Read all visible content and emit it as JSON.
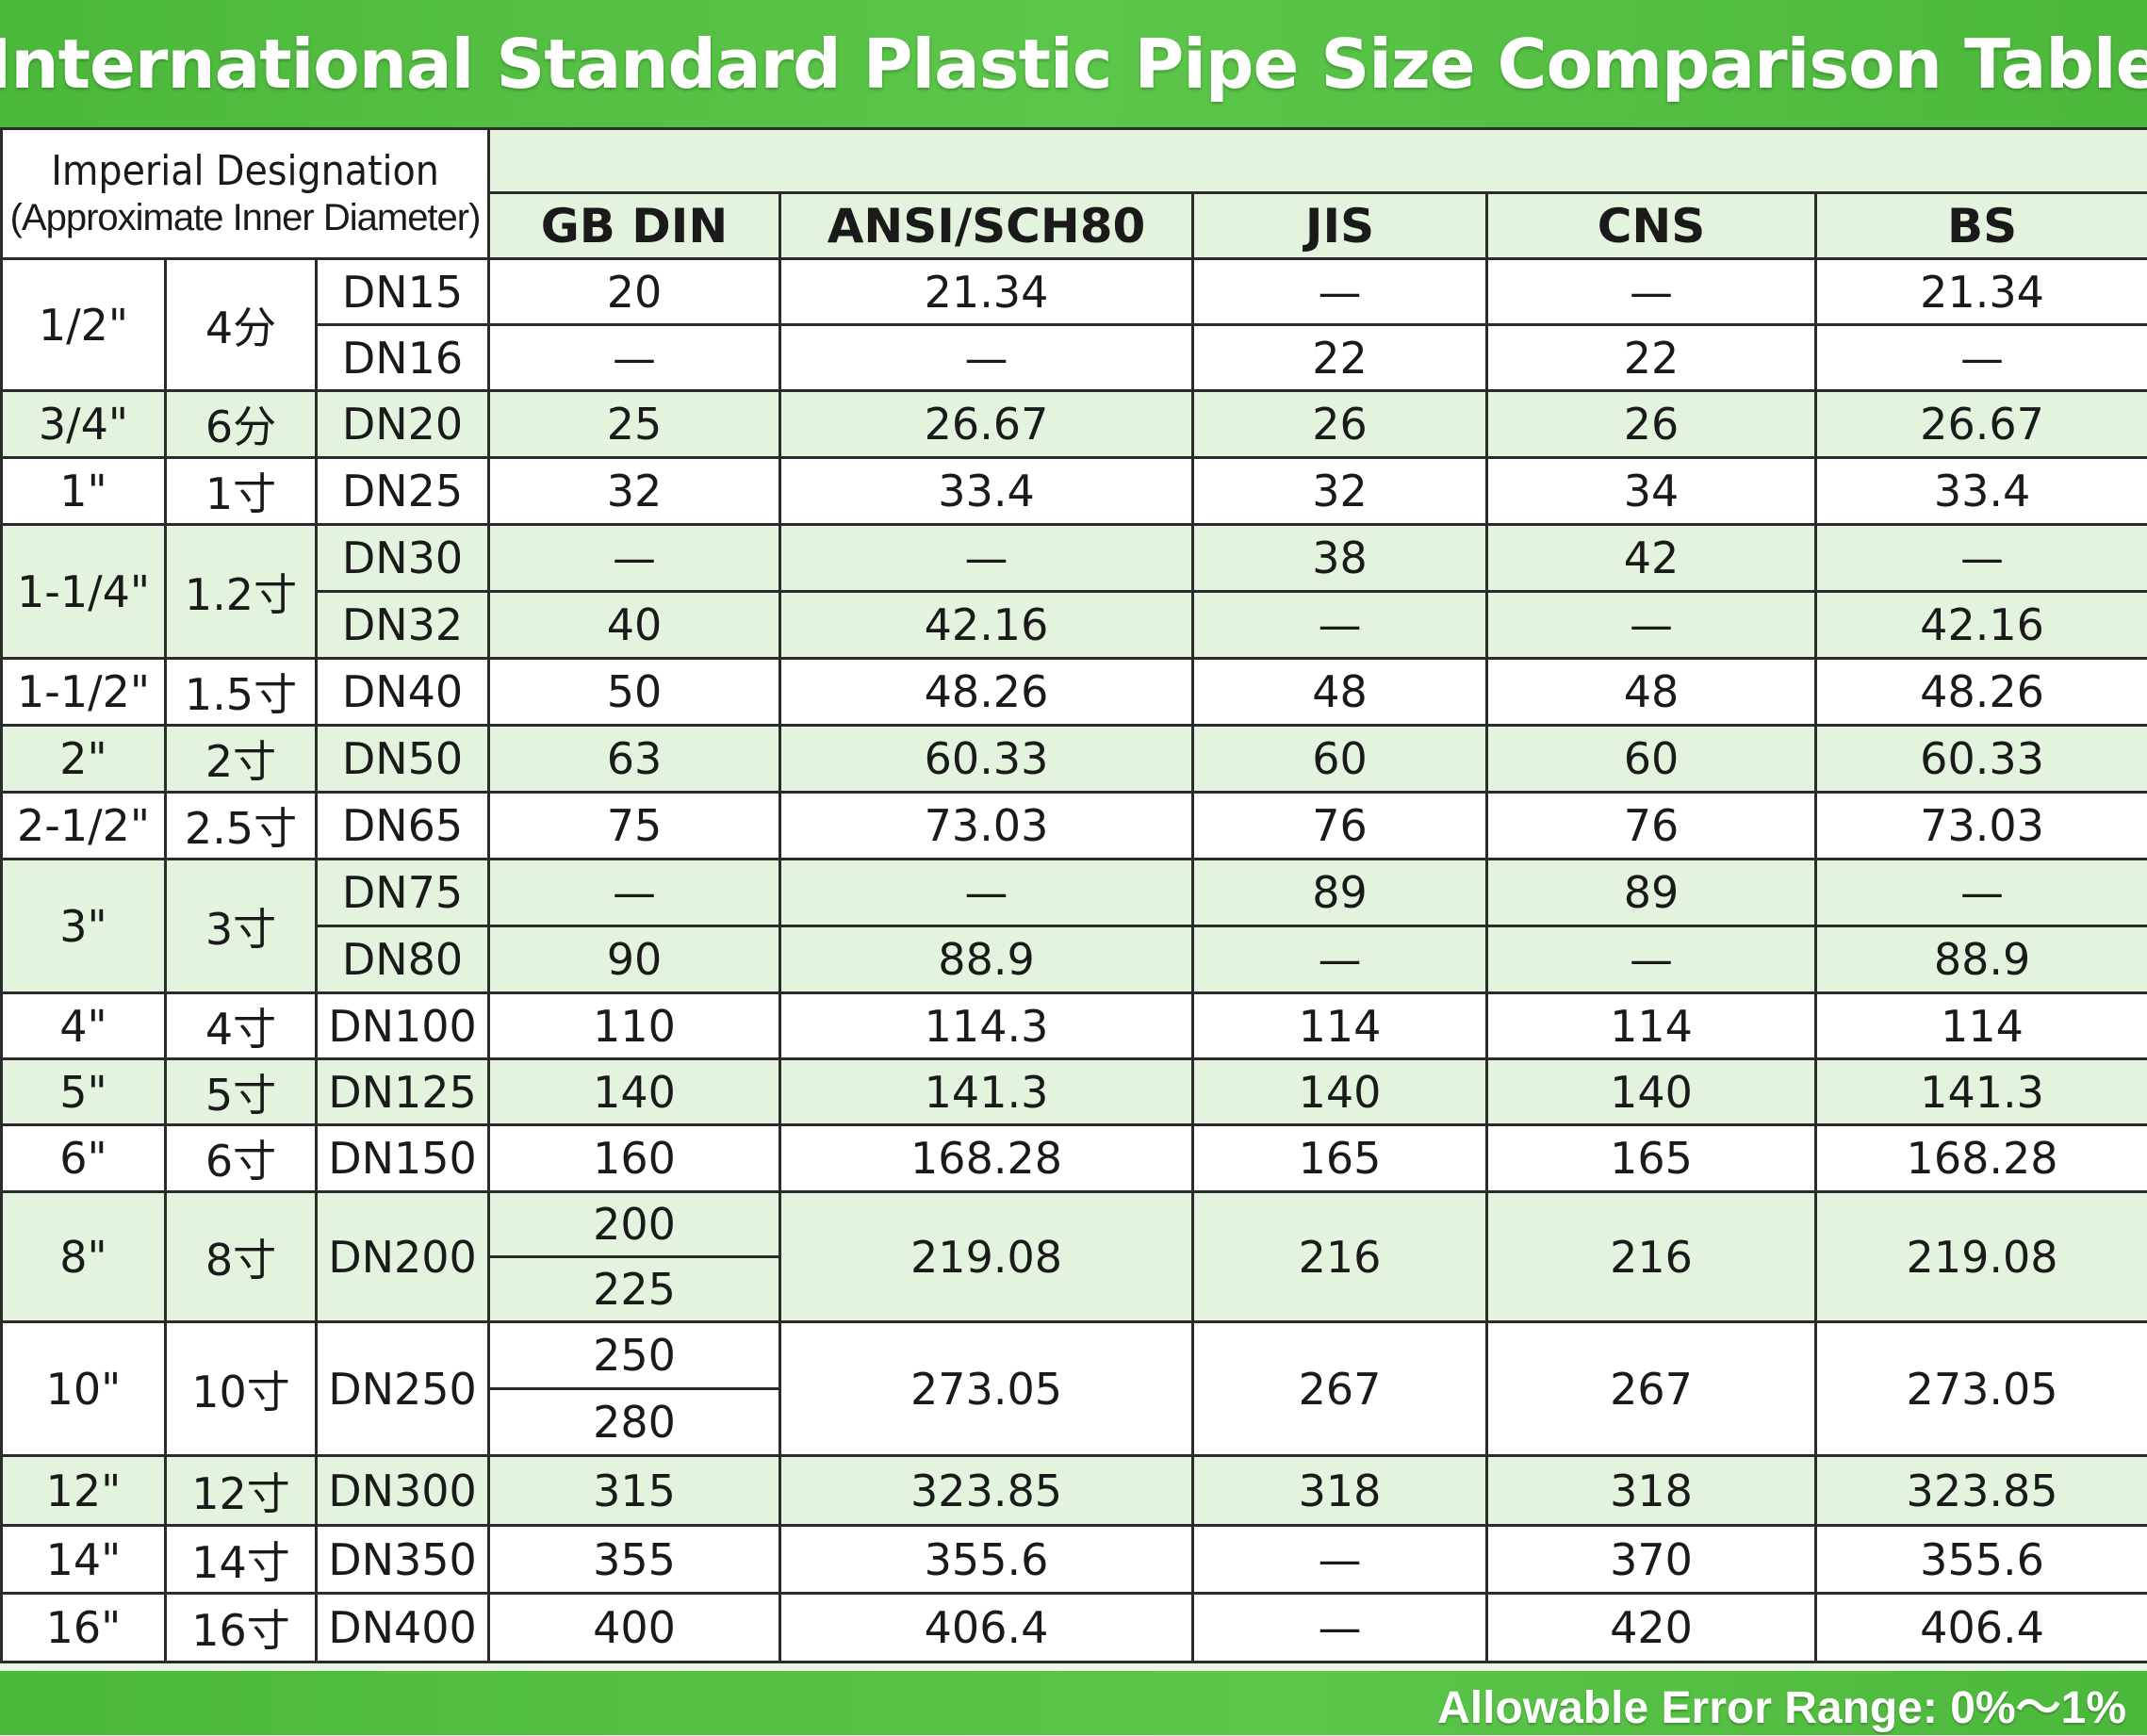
{
  "title": "International Standard Plastic Pipe Size Comparison Table",
  "header": {
    "imperial_line1": "Imperial Designation",
    "imperial_line2": "(Approximate Inner Diameter)",
    "columns": [
      "GB DIN",
      "ANSI/SCH80",
      "JIS",
      "CNS",
      "BS"
    ]
  },
  "rows": [
    {
      "inch": "1/2\"",
      "cn": "4分",
      "dn": "DN15",
      "gb": "20",
      "ansi": "21.34",
      "jis": "—",
      "cns": "—",
      "bs": "21.34"
    },
    {
      "dn": "DN16",
      "gb": "—",
      "ansi": "—",
      "jis": "22",
      "cns": "22",
      "bs": "—"
    },
    {
      "inch": "3/4\"",
      "cn": "6分",
      "dn": "DN20",
      "gb": "25",
      "ansi": "26.67",
      "jis": "26",
      "cns": "26",
      "bs": "26.67"
    },
    {
      "inch": "1\"",
      "cn": "1寸",
      "dn": "DN25",
      "gb": "32",
      "ansi": "33.4",
      "jis": "32",
      "cns": "34",
      "bs": "33.4"
    },
    {
      "inch": "1-1/4\"",
      "cn": "1.2寸",
      "dn": "DN30",
      "gb": "—",
      "ansi": "—",
      "jis": "38",
      "cns": "42",
      "bs": "—"
    },
    {
      "dn": "DN32",
      "gb": "40",
      "ansi": "42.16",
      "jis": "—",
      "cns": "—",
      "bs": "42.16"
    },
    {
      "inch": "1-1/2\"",
      "cn": "1.5寸",
      "dn": "DN40",
      "gb": "50",
      "ansi": "48.26",
      "jis": "48",
      "cns": "48",
      "bs": "48.26"
    },
    {
      "inch": "2\"",
      "cn": "2寸",
      "dn": "DN50",
      "gb": "63",
      "ansi": "60.33",
      "jis": "60",
      "cns": "60",
      "bs": "60.33"
    },
    {
      "inch": "2-1/2\"",
      "cn": "2.5寸",
      "dn": "DN65",
      "gb": "75",
      "ansi": "73.03",
      "jis": "76",
      "cns": "76",
      "bs": "73.03"
    },
    {
      "inch": "3\"",
      "cn": "3寸",
      "dn": "DN75",
      "gb": "—",
      "ansi": "—",
      "jis": "89",
      "cns": "89",
      "bs": "—"
    },
    {
      "dn": "DN80",
      "gb": "90",
      "ansi": "88.9",
      "jis": "—",
      "cns": "—",
      "bs": "88.9"
    },
    {
      "inch": "4\"",
      "cn": "4寸",
      "dn": "DN100",
      "gb": "110",
      "ansi": "114.3",
      "jis": "114",
      "cns": "114",
      "bs": "114"
    },
    {
      "inch": "5\"",
      "cn": "5寸",
      "dn": "DN125",
      "gb": "140",
      "ansi": "141.3",
      "jis": "140",
      "cns": "140",
      "bs": "141.3"
    },
    {
      "inch": "6\"",
      "cn": "6寸",
      "dn": "DN150",
      "gb": "160",
      "ansi": "168.28",
      "jis": "165",
      "cns": "165",
      "bs": "168.28"
    },
    {
      "inch": "8\"",
      "cn": "8寸",
      "dn": "DN200",
      "gb": "200",
      "ansi": "219.08",
      "jis": "216",
      "cns": "216",
      "bs": "219.08"
    },
    {
      "gb": "225"
    },
    {
      "inch": "10\"",
      "cn": "10寸",
      "dn": "DN250",
      "gb": "250",
      "ansi": "273.05",
      "jis": "267",
      "cns": "267",
      "bs": "273.05"
    },
    {
      "gb": "280"
    },
    {
      "inch": "12\"",
      "cn": "12寸",
      "dn": "DN300",
      "gb": "315",
      "ansi": "323.85",
      "jis": "318",
      "cns": "318",
      "bs": "323.85"
    },
    {
      "inch": "14\"",
      "cn": "14寸",
      "dn": "DN350",
      "gb": "355",
      "ansi": "355.6",
      "jis": "—",
      "cns": "370",
      "bs": "355.6"
    },
    {
      "inch": "16\"",
      "cn": "16寸",
      "dn": "DN400",
      "gb": "400",
      "ansi": "406.4",
      "jis": "—",
      "cns": "420",
      "bs": "406.4"
    }
  ],
  "footer": "Allowable Error Range: 0%～1%"
}
